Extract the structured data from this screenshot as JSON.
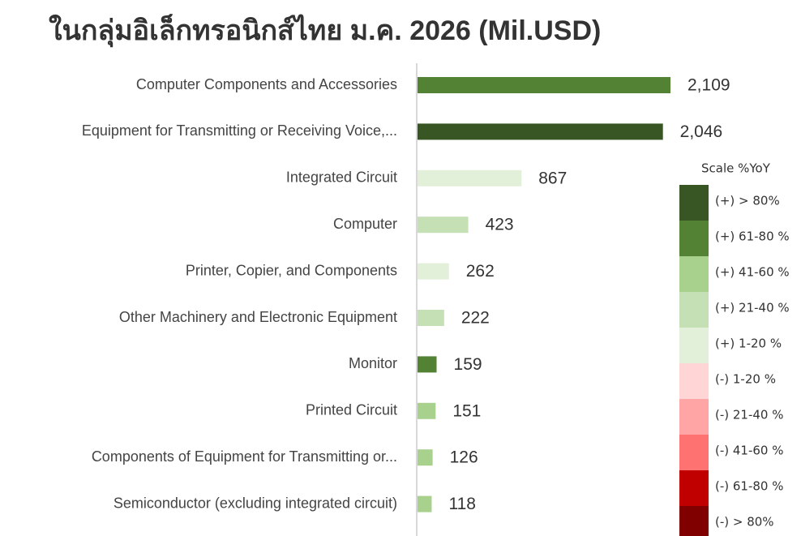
{
  "chart_data": {
    "type": "bar",
    "orientation": "horizontal",
    "title": "ในกลุ่มอิเล็กทรอนิกส์ไทย  ม.ค. 2026 (Mil.USD)",
    "categories": [
      "Computer Components and Accessories",
      "Equipment for Transmitting or Receiving Voice,...",
      "Integrated Circuit",
      "Computer",
      "Printer, Copier, and Components",
      "Other Machinery and Electronic Equipment",
      "Monitor",
      "Printed Circuit",
      "Components of Equipment for Transmitting or...",
      "Semiconductor (excluding integrated circuit)"
    ],
    "values": [
      2109,
      2046,
      867,
      423,
      262,
      222,
      159,
      151,
      126,
      118
    ],
    "value_labels": [
      "2,109",
      "2,046",
      "867",
      "423",
      "262",
      "222",
      "159",
      "151",
      "126",
      "118"
    ],
    "colors": [
      "#548235",
      "#375623",
      "#e2f0d9",
      "#c5e0b4",
      "#e2f0d9",
      "#c5e0b4",
      "#548235",
      "#a9d18e",
      "#a9d18e",
      "#a9d18e"
    ],
    "legend": {
      "title": "Scale %YoY",
      "items": [
        {
          "label": "(+) > 80%",
          "color": "#375623"
        },
        {
          "label": "(+) 61-80 %",
          "color": "#548235"
        },
        {
          "label": "(+) 41-60 %",
          "color": "#a9d18e"
        },
        {
          "label": "(+) 21-40 %",
          "color": "#c5e0b4"
        },
        {
          "label": "(+) 1-20 %",
          "color": "#e2f0d9"
        },
        {
          "label": "(-) 1-20 %",
          "color": "#ffd5d5"
        },
        {
          "label": "(-) 21-40 %",
          "color": "#ffa5a5"
        },
        {
          "label": "(-) 41-60 %",
          "color": "#ff7272"
        },
        {
          "label": "(-) 61-80 %",
          "color": "#c00000"
        },
        {
          "label": "(-) > 80%",
          "color": "#800000"
        }
      ]
    }
  }
}
